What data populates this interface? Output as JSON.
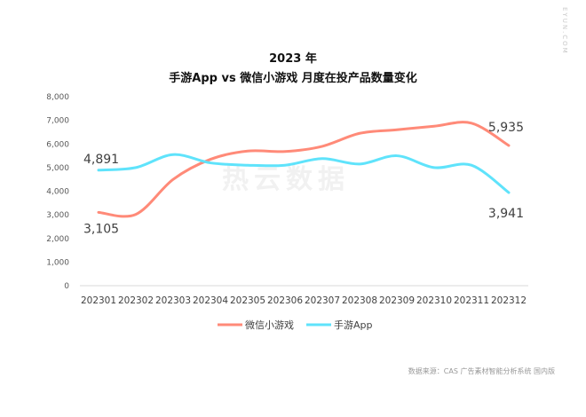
{
  "chart_data": {
    "type": "line",
    "title": "2023 年",
    "subtitle": "手游App vs 微信小游戏 月度在投产品数量变化",
    "categories": [
      "202301",
      "202302",
      "202303",
      "202304",
      "202305",
      "202306",
      "202307",
      "202308",
      "202309",
      "202310",
      "202311",
      "202312"
    ],
    "ylim": [
      0,
      8000
    ],
    "yticks": [
      "0",
      "1,000",
      "2,000",
      "3,000",
      "4,000",
      "5,000",
      "6,000",
      "7,000",
      "8,000"
    ],
    "grid": false,
    "legend_position": "bottom",
    "series": [
      {
        "name": "微信小游戏",
        "color": "#ff8a78",
        "values": [
          3105,
          3020,
          4500,
          5350,
          5700,
          5680,
          5900,
          6450,
          6600,
          6750,
          6880,
          5935
        ],
        "labels": {
          "first": "3,105",
          "last": "5,935"
        }
      },
      {
        "name": "手游App",
        "color": "#5fe3fb",
        "values": [
          4891,
          5000,
          5550,
          5200,
          5100,
          5100,
          5380,
          5150,
          5500,
          5000,
          5100,
          3941
        ],
        "labels": {
          "first": "4,891",
          "last": "3,941"
        }
      }
    ],
    "source": "数据来源：CAS 广告素材智能分析系统 国内版"
  },
  "watermark": {
    "center": "热云数据",
    "corner": "EYUN.COM"
  }
}
